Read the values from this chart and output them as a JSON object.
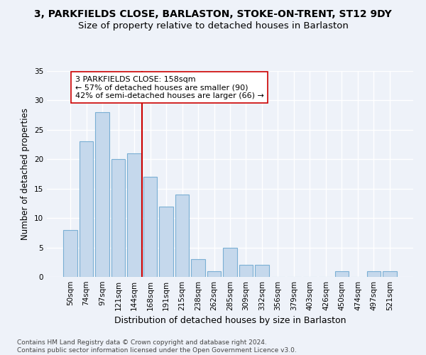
{
  "title": "3, PARKFIELDS CLOSE, BARLASTON, STOKE-ON-TRENT, ST12 9DY",
  "subtitle": "Size of property relative to detached houses in Barlaston",
  "xlabel": "Distribution of detached houses by size in Barlaston",
  "ylabel": "Number of detached properties",
  "categories": [
    "50sqm",
    "74sqm",
    "97sqm",
    "121sqm",
    "144sqm",
    "168sqm",
    "191sqm",
    "215sqm",
    "238sqm",
    "262sqm",
    "285sqm",
    "309sqm",
    "332sqm",
    "356sqm",
    "379sqm",
    "403sqm",
    "426sqm",
    "450sqm",
    "474sqm",
    "497sqm",
    "521sqm"
  ],
  "values": [
    8,
    23,
    28,
    20,
    21,
    17,
    12,
    14,
    3,
    1,
    5,
    2,
    2,
    0,
    0,
    0,
    0,
    1,
    0,
    1,
    1
  ],
  "bar_color": "#c5d8ec",
  "bar_edge_color": "#7aafd4",
  "vline_x_idx": 5,
  "vline_color": "#cc0000",
  "annotation_text": "3 PARKFIELDS CLOSE: 158sqm\n← 57% of detached houses are smaller (90)\n42% of semi-detached houses are larger (66) →",
  "annotation_box_color": "#ffffff",
  "annotation_box_edge": "#cc0000",
  "ylim": [
    0,
    35
  ],
  "yticks": [
    0,
    5,
    10,
    15,
    20,
    25,
    30,
    35
  ],
  "background_color": "#eef2f9",
  "grid_color": "#ffffff",
  "footer": "Contains HM Land Registry data © Crown copyright and database right 2024.\nContains public sector information licensed under the Open Government Licence v3.0.",
  "title_fontsize": 10,
  "subtitle_fontsize": 9.5,
  "xlabel_fontsize": 9,
  "ylabel_fontsize": 8.5,
  "tick_fontsize": 7.5,
  "annotation_fontsize": 8,
  "footer_fontsize": 6.5
}
